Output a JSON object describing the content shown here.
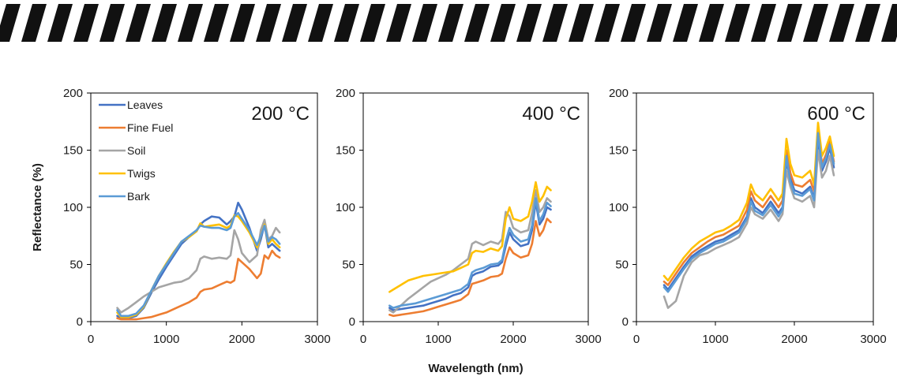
{
  "chart_data": [
    {
      "type": "line",
      "panel_label": "200 °C",
      "ylabel": "Reflectance (%)",
      "xlabel": "",
      "xlim": [
        0,
        3000
      ],
      "ylim": [
        0,
        200
      ],
      "xticks": [
        0,
        1000,
        2000,
        3000
      ],
      "yticks": [
        0,
        50,
        100,
        150,
        200
      ],
      "legend": "top-left",
      "series": [
        {
          "name": "Leaves",
          "color": "#4472c4",
          "x": [
            350,
            400,
            500,
            600,
            700,
            800,
            900,
            1000,
            1100,
            1200,
            1300,
            1400,
            1450,
            1500,
            1600,
            1700,
            1800,
            1850,
            1900,
            1950,
            2000,
            2100,
            2200,
            2250,
            2300,
            2350,
            2400,
            2450,
            2500
          ],
          "y": [
            5,
            3,
            3,
            5,
            12,
            25,
            37,
            48,
            58,
            68,
            74,
            79,
            85,
            88,
            92,
            91,
            85,
            88,
            92,
            104,
            98,
            82,
            62,
            72,
            85,
            65,
            68,
            65,
            62
          ]
        },
        {
          "name": "Fine Fuel",
          "color": "#ed7d31",
          "x": [
            350,
            400,
            500,
            600,
            700,
            800,
            900,
            1000,
            1100,
            1200,
            1300,
            1400,
            1450,
            1500,
            1600,
            1700,
            1800,
            1850,
            1900,
            1950,
            2000,
            2100,
            2200,
            2250,
            2300,
            2350,
            2400,
            2450,
            2500
          ],
          "y": [
            3,
            2,
            2,
            2,
            3,
            4,
            6,
            8,
            11,
            14,
            17,
            21,
            26,
            28,
            29,
            32,
            35,
            34,
            36,
            55,
            52,
            46,
            38,
            42,
            58,
            55,
            62,
            58,
            56
          ]
        },
        {
          "name": "Soil",
          "color": "#a5a5a5",
          "x": [
            350,
            400,
            500,
            600,
            700,
            800,
            900,
            1000,
            1100,
            1200,
            1300,
            1400,
            1450,
            1500,
            1600,
            1700,
            1800,
            1850,
            1900,
            1950,
            2000,
            2100,
            2200,
            2250,
            2300,
            2350,
            2400,
            2450,
            2500
          ],
          "y": [
            12,
            8,
            12,
            17,
            22,
            26,
            30,
            32,
            34,
            35,
            38,
            45,
            55,
            57,
            55,
            56,
            55,
            58,
            80,
            72,
            60,
            52,
            58,
            80,
            89,
            72,
            75,
            82,
            78
          ]
        },
        {
          "name": "Twigs",
          "color": "#ffc000",
          "x": [
            350,
            400,
            500,
            600,
            700,
            800,
            900,
            1000,
            1100,
            1200,
            1300,
            1400,
            1450,
            1500,
            1600,
            1700,
            1800,
            1850,
            1900,
            1950,
            2000,
            2100,
            2200,
            2250,
            2300,
            2350,
            2400,
            2450,
            2500
          ],
          "y": [
            8,
            4,
            4,
            6,
            13,
            27,
            40,
            51,
            61,
            70,
            74,
            79,
            86,
            83,
            84,
            85,
            82,
            84,
            93,
            92,
            88,
            78,
            65,
            75,
            85,
            68,
            72,
            68,
            65
          ]
        },
        {
          "name": "Bark",
          "color": "#5b9bd5",
          "x": [
            350,
            400,
            500,
            600,
            700,
            800,
            900,
            1000,
            1100,
            1200,
            1300,
            1400,
            1450,
            1500,
            1600,
            1700,
            1800,
            1850,
            1900,
            1950,
            2000,
            2100,
            2200,
            2250,
            2300,
            2350,
            2400,
            2450,
            2500
          ],
          "y": [
            10,
            5,
            5,
            7,
            14,
            27,
            40,
            50,
            60,
            70,
            75,
            80,
            84,
            83,
            82,
            82,
            80,
            82,
            92,
            95,
            90,
            80,
            67,
            75,
            84,
            70,
            74,
            72,
            68
          ]
        }
      ]
    },
    {
      "type": "line",
      "panel_label": "400 °C",
      "ylabel": "",
      "xlabel": "Wavelength (nm)",
      "xlim": [
        0,
        3000
      ],
      "ylim": [
        0,
        200
      ],
      "xticks": [
        0,
        1000,
        2000,
        3000
      ],
      "yticks": [
        0,
        50,
        100,
        150,
        200
      ],
      "series": [
        {
          "name": "Leaves",
          "color": "#4472c4",
          "x": [
            350,
            400,
            500,
            600,
            700,
            800,
            900,
            1000,
            1100,
            1200,
            1300,
            1400,
            1450,
            1500,
            1600,
            1700,
            1800,
            1850,
            1900,
            1950,
            2000,
            2100,
            2200,
            2250,
            2300,
            2350,
            2400,
            2450,
            2500
          ],
          "y": [
            12,
            10,
            11,
            12,
            13,
            14,
            16,
            18,
            20,
            23,
            25,
            30,
            40,
            42,
            44,
            48,
            49,
            52,
            66,
            78,
            72,
            66,
            68,
            80,
            105,
            85,
            90,
            100,
            98
          ]
        },
        {
          "name": "Fine Fuel",
          "color": "#ed7d31",
          "x": [
            350,
            400,
            500,
            600,
            700,
            800,
            900,
            1000,
            1100,
            1200,
            1300,
            1400,
            1450,
            1500,
            1600,
            1700,
            1800,
            1850,
            1900,
            1950,
            2000,
            2100,
            2200,
            2250,
            2300,
            2350,
            2400,
            2450,
            2500
          ],
          "y": [
            6,
            5,
            6,
            7,
            8,
            9,
            11,
            13,
            15,
            17,
            19,
            24,
            33,
            34,
            36,
            39,
            40,
            42,
            55,
            65,
            60,
            56,
            58,
            68,
            88,
            75,
            80,
            90,
            87
          ]
        },
        {
          "name": "Soil",
          "color": "#a5a5a5",
          "x": [
            350,
            400,
            500,
            600,
            700,
            800,
            900,
            1000,
            1100,
            1200,
            1300,
            1400,
            1450,
            1500,
            1600,
            1700,
            1800,
            1850,
            1900,
            1950,
            2000,
            2100,
            2200,
            2250,
            2300,
            2350,
            2400,
            2450,
            2500
          ],
          "y": [
            10,
            8,
            14,
            20,
            25,
            30,
            35,
            38,
            41,
            45,
            50,
            55,
            68,
            70,
            67,
            70,
            68,
            72,
            96,
            92,
            82,
            78,
            80,
            95,
            115,
            96,
            100,
            108,
            105
          ]
        },
        {
          "name": "Twigs",
          "color": "#ffc000",
          "x": [
            350,
            400,
            500,
            600,
            700,
            800,
            900,
            1000,
            1100,
            1200,
            1300,
            1400,
            1450,
            1500,
            1600,
            1700,
            1800,
            1850,
            1900,
            1950,
            2000,
            2100,
            2200,
            2250,
            2300,
            2350,
            2400,
            2450,
            2500
          ],
          "y": [
            26,
            28,
            32,
            36,
            38,
            40,
            41,
            42,
            43,
            44,
            47,
            50,
            60,
            62,
            61,
            64,
            62,
            66,
            90,
            100,
            90,
            88,
            92,
            105,
            122,
            105,
            110,
            118,
            115
          ]
        },
        {
          "name": "Bark",
          "color": "#5b9bd5",
          "x": [
            350,
            400,
            500,
            600,
            700,
            800,
            900,
            1000,
            1100,
            1200,
            1300,
            1400,
            1450,
            1500,
            1600,
            1700,
            1800,
            1850,
            1900,
            1950,
            2000,
            2100,
            2200,
            2250,
            2300,
            2350,
            2400,
            2450,
            2500
          ],
          "y": [
            14,
            12,
            14,
            15,
            16,
            18,
            20,
            22,
            24,
            26,
            28,
            33,
            43,
            45,
            47,
            50,
            51,
            54,
            70,
            82,
            76,
            70,
            72,
            84,
            108,
            88,
            94,
            104,
            101
          ]
        }
      ]
    },
    {
      "type": "line",
      "panel_label": "600 °C",
      "ylabel": "",
      "xlabel": "",
      "xlim": [
        0,
        3000
      ],
      "ylim": [
        0,
        200
      ],
      "xticks": [
        0,
        1000,
        2000,
        3000
      ],
      "yticks": [
        0,
        50,
        100,
        150,
        200
      ],
      "series": [
        {
          "name": "Leaves",
          "color": "#4472c4",
          "x": [
            350,
            400,
            500,
            600,
            700,
            800,
            900,
            1000,
            1100,
            1200,
            1300,
            1400,
            1450,
            1500,
            1600,
            1700,
            1800,
            1850,
            1900,
            1950,
            2000,
            2100,
            2200,
            2250,
            2300,
            2350,
            2400,
            2450,
            2500
          ],
          "y": [
            32,
            28,
            38,
            48,
            57,
            62,
            66,
            70,
            72,
            76,
            80,
            92,
            108,
            100,
            95,
            105,
            95,
            100,
            140,
            125,
            115,
            112,
            118,
            108,
            160,
            132,
            140,
            152,
            135
          ]
        },
        {
          "name": "Fine Fuel",
          "color": "#ed7d31",
          "x": [
            350,
            400,
            500,
            600,
            700,
            800,
            900,
            1000,
            1100,
            1200,
            1300,
            1400,
            1450,
            1500,
            1600,
            1700,
            1800,
            1850,
            1900,
            1950,
            2000,
            2100,
            2200,
            2250,
            2300,
            2350,
            2400,
            2450,
            2500
          ],
          "y": [
            35,
            32,
            42,
            52,
            60,
            65,
            70,
            74,
            76,
            80,
            84,
            98,
            114,
            106,
            100,
            110,
            100,
            106,
            150,
            130,
            120,
            118,
            124,
            114,
            168,
            138,
            146,
            158,
            140
          ]
        },
        {
          "name": "Soil",
          "color": "#a5a5a5",
          "x": [
            350,
            400,
            500,
            600,
            700,
            800,
            900,
            1000,
            1100,
            1200,
            1300,
            1400,
            1450,
            1500,
            1600,
            1700,
            1800,
            1850,
            1900,
            1950,
            2000,
            2100,
            2200,
            2250,
            2300,
            2350,
            2400,
            2450,
            2500
          ],
          "y": [
            22,
            12,
            18,
            40,
            52,
            58,
            60,
            64,
            67,
            70,
            74,
            86,
            100,
            94,
            90,
            98,
            88,
            94,
            132,
            118,
            108,
            105,
            110,
            100,
            150,
            126,
            132,
            145,
            128
          ]
        },
        {
          "name": "Twigs",
          "color": "#ffc000",
          "x": [
            350,
            400,
            500,
            600,
            700,
            800,
            900,
            1000,
            1100,
            1200,
            1300,
            1400,
            1450,
            1500,
            1600,
            1700,
            1800,
            1850,
            1900,
            1950,
            2000,
            2100,
            2200,
            2250,
            2300,
            2350,
            2400,
            2450,
            2500
          ],
          "y": [
            40,
            36,
            46,
            56,
            64,
            70,
            74,
            78,
            80,
            84,
            89,
            104,
            120,
            112,
            106,
            116,
            106,
            112,
            160,
            138,
            128,
            126,
            132,
            120,
            174,
            145,
            152,
            162,
            145
          ]
        },
        {
          "name": "Bark",
          "color": "#5b9bd5",
          "x": [
            350,
            400,
            500,
            600,
            700,
            800,
            900,
            1000,
            1100,
            1200,
            1300,
            1400,
            1450,
            1500,
            1600,
            1700,
            1800,
            1850,
            1900,
            1950,
            2000,
            2100,
            2200,
            2250,
            2300,
            2350,
            2400,
            2450,
            2500
          ],
          "y": [
            30,
            26,
            36,
            46,
            55,
            60,
            64,
            68,
            70,
            74,
            78,
            90,
            105,
            97,
            93,
            102,
            92,
            98,
            145,
            122,
            112,
            110,
            116,
            106,
            165,
            135,
            143,
            155,
            138
          ]
        }
      ]
    }
  ]
}
